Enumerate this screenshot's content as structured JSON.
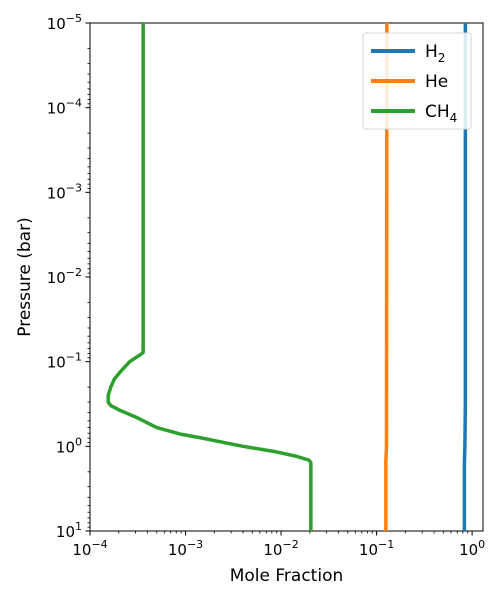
{
  "chart_data": {
    "type": "line",
    "title": "",
    "xlabel": "Mole Fraction",
    "ylabel": "Pressure (bar)",
    "xscale": "log",
    "yscale": "log",
    "y_inverted": true,
    "xlim": [
      0.0001,
      1.3
    ],
    "ylim": [
      10,
      1e-05
    ],
    "grid": false,
    "legend_position": "top-right",
    "x_ticks": [
      {
        "value": 0.0001,
        "base": "10",
        "exp": "−4"
      },
      {
        "value": 0.001,
        "base": "10",
        "exp": "−3"
      },
      {
        "value": 0.01,
        "base": "10",
        "exp": "−2"
      },
      {
        "value": 0.1,
        "base": "10",
        "exp": "−1"
      },
      {
        "value": 1,
        "base": "10",
        "exp": "0"
      }
    ],
    "y_ticks": [
      {
        "value": 1e-05,
        "base": "10",
        "exp": "−5"
      },
      {
        "value": 0.0001,
        "base": "10",
        "exp": "−4"
      },
      {
        "value": 0.001,
        "base": "10",
        "exp": "−3"
      },
      {
        "value": 0.01,
        "base": "10",
        "exp": "−2"
      },
      {
        "value": 0.1,
        "base": "10",
        "exp": "−1"
      },
      {
        "value": 1,
        "base": "10",
        "exp": "0"
      },
      {
        "value": 10,
        "base": "10",
        "exp": "1"
      }
    ],
    "series": [
      {
        "name": "H₂",
        "label_main": "H",
        "label_sub": "2",
        "color": "#1f77b4",
        "points": [
          [
            0.83,
            10
          ],
          [
            0.83,
            1.6
          ],
          [
            0.84,
            1.0
          ],
          [
            0.85,
            0.3
          ],
          [
            0.85,
            1e-05
          ]
        ]
      },
      {
        "name": "He",
        "label_main": "He",
        "label_sub": "",
        "color": "#ff7f0e",
        "points": [
          [
            0.125,
            10
          ],
          [
            0.125,
            1.5
          ],
          [
            0.127,
            1.0
          ],
          [
            0.128,
            1e-05
          ]
        ]
      },
      {
        "name": "CH₄",
        "label_main": "CH",
        "label_sub": "4",
        "color": "#2ca02c",
        "points": [
          [
            0.0205,
            10
          ],
          [
            0.0205,
            1.55
          ],
          [
            0.0195,
            1.45
          ],
          [
            0.014,
            1.3
          ],
          [
            0.0085,
            1.15
          ],
          [
            0.004,
            1.0
          ],
          [
            0.0025,
            0.9
          ],
          [
            0.0015,
            0.8
          ],
          [
            0.0009,
            0.72
          ],
          [
            0.0005,
            0.6
          ],
          [
            0.0003,
            0.45
          ],
          [
            0.00021,
            0.38
          ],
          [
            0.000165,
            0.33
          ],
          [
            0.000155,
            0.3
          ],
          [
            0.000155,
            0.25
          ],
          [
            0.000165,
            0.2
          ],
          [
            0.00018,
            0.16
          ],
          [
            0.00021,
            0.13
          ],
          [
            0.00026,
            0.1
          ],
          [
            0.00034,
            0.082
          ],
          [
            0.00036,
            0.078
          ],
          [
            0.00036,
            1e-05
          ]
        ]
      }
    ]
  }
}
